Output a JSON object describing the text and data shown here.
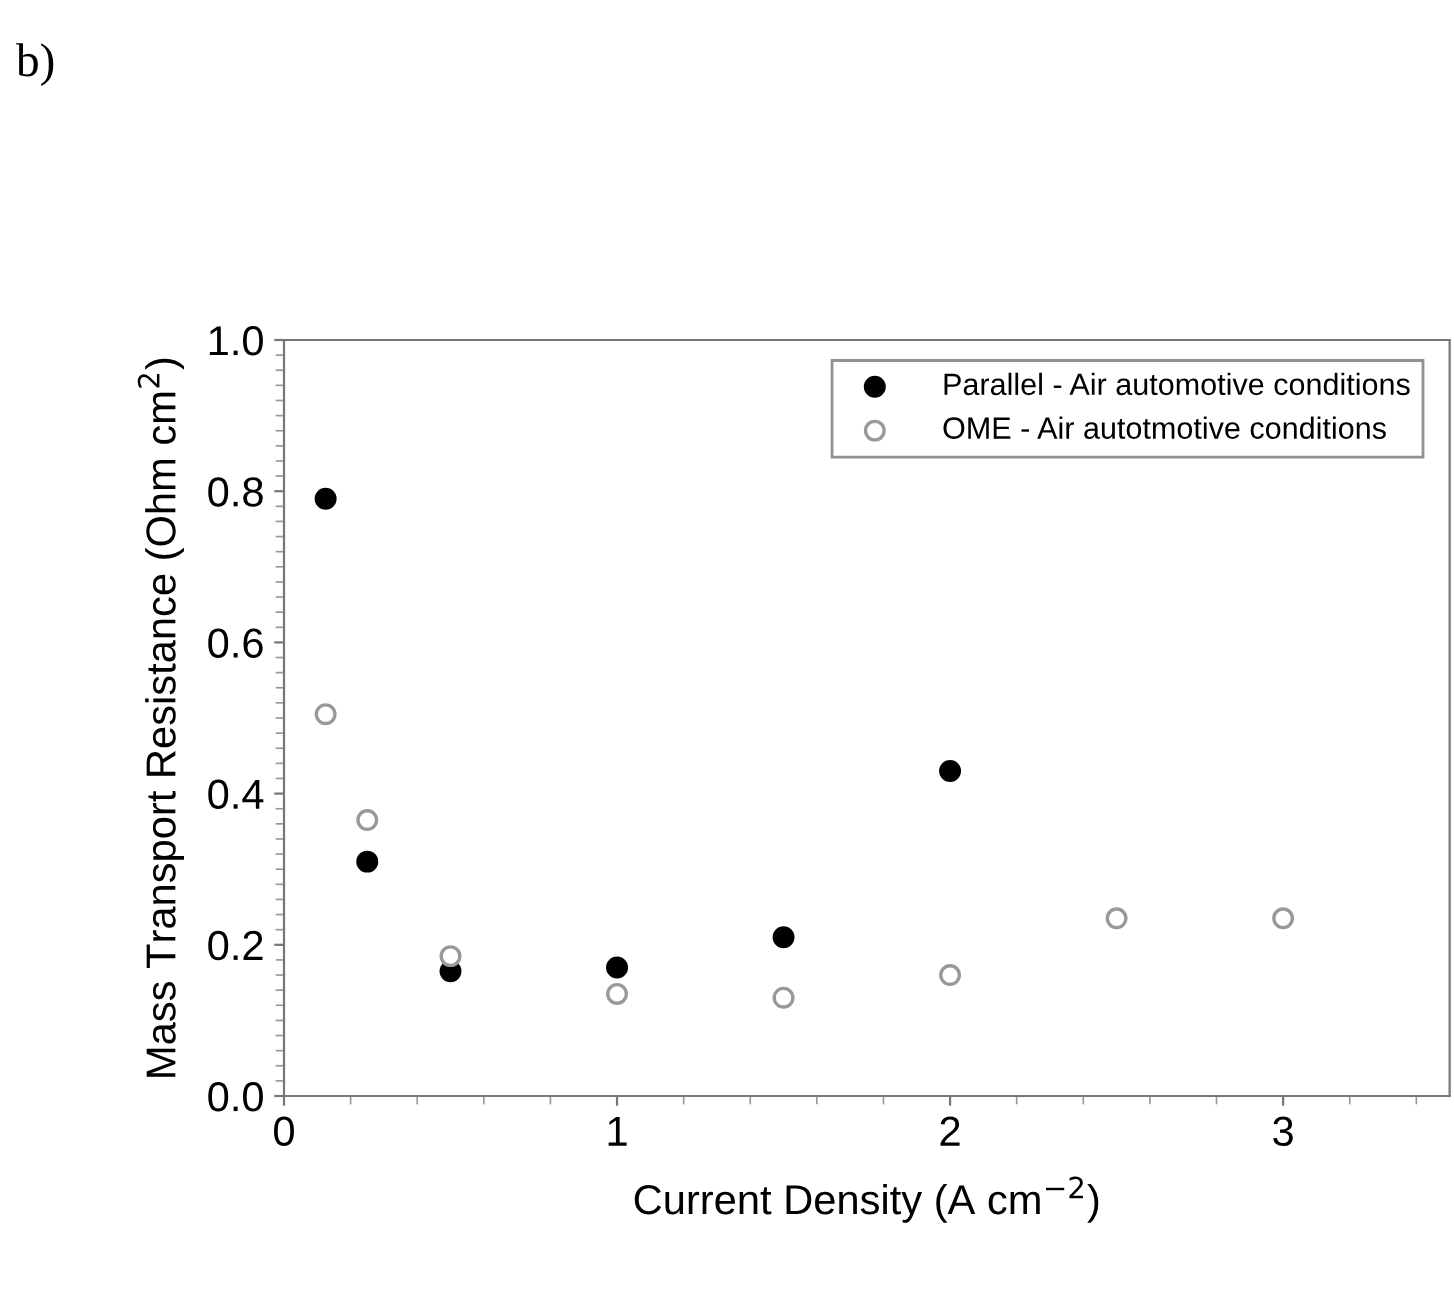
{
  "chart_data": {
    "type": "scatter",
    "xlabel": "Current Density (A cm$^{−2}$)",
    "ylabel": "Mass Transport Resistance (Ohm cm$^{2}$)",
    "annotations": [
      "b)"
    ],
    "series": [
      {
        "name": "Parallel - Air automotive conditions",
        "color": "#000000",
        "x": [
          0.125,
          0.25,
          0.5,
          1,
          1.5,
          2
        ],
        "values": [
          0.79,
          0.31,
          0.165,
          0.17,
          0.21,
          0.43
        ]
      },
      {
        "name": "OME - Air autotmotive conditions",
        "color": "#999999",
        "x": [
          0.125,
          0.25,
          0.5,
          1,
          1.5,
          2,
          2.5,
          3
        ],
        "values": [
          0.505,
          0.365,
          0.185,
          0.135,
          0.13,
          0.16,
          0.235,
          0.235
        ]
      }
    ],
    "xlim": [
      0,
      3.5
    ],
    "xticks": [
      0,
      1,
      2,
      3
    ],
    "ylim": [
      0,
      1.0
    ],
    "yticks": [
      {
        "value": 0,
        "label": "0.0"
      },
      0.2,
      0.4,
      0.6,
      0.8,
      {
        "value": 1.0,
        "label": "1.0"
      }
    ],
    "marker": "circle",
    "grid": false,
    "legend": "top right"
  }
}
